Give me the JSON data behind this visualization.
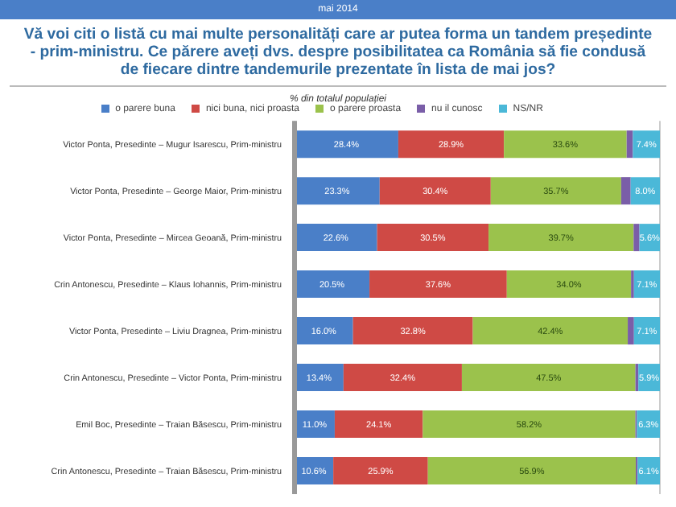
{
  "chart_data": {
    "type": "bar",
    "orientation": "horizontal",
    "stacked": true,
    "title": "Vă voi citi o listă cu mai multe personalități care ar putea forma un tandem președinte - prim-ministru. Ce părere aveți dvs. despre posibilitatea ca România să fie condusă de fiecare dintre tandemurile prezentate în lista de mai jos?",
    "subtitle": "% din totalul populației",
    "annotations": [
      "mai 2014"
    ],
    "categories": [
      "Victor Ponta, Presedinte – Mugur Isarescu, Prim-ministru",
      "Victor Ponta, Presedinte – George Maior, Prim-ministru",
      "Victor Ponta, Presedinte – Mircea Geoană, Prim-ministru",
      "Crin Antonescu, Presedinte – Klaus Iohannis, Prim-ministru",
      "Victor Ponta, Presedinte – Liviu Dragnea, Prim-ministru",
      "Crin Antonescu, Presedinte – Victor Ponta, Prim-ministru",
      "Emil Boc, Presedinte – Traian Băsescu, Prim-ministru",
      "Crin Antonescu, Presedinte – Traian Băsescu, Prim-ministru"
    ],
    "series": [
      {
        "name": "o parere buna",
        "color": "#4a7fc8",
        "values": [
          28.4,
          23.3,
          22.6,
          20.5,
          16.0,
          13.4,
          11.0,
          10.6
        ],
        "value_labels": [
          "28.4%",
          "23.3%",
          "22.6%",
          "20.5%",
          "16.0%",
          "13.4%",
          "11.0%",
          "10.6%"
        ]
      },
      {
        "name": "nici buna, nici proasta",
        "color": "#cf4a45",
        "values": [
          28.9,
          30.4,
          30.5,
          37.6,
          32.8,
          32.4,
          24.1,
          25.9
        ],
        "value_labels": [
          "28.9%",
          "30.4%",
          "30.5%",
          "37.6%",
          "32.8%",
          "32.4%",
          "24.1%",
          "25.9%"
        ]
      },
      {
        "name": "o parere proasta",
        "color": "#9bc24c",
        "values": [
          33.6,
          35.7,
          39.7,
          34.0,
          42.4,
          47.5,
          58.2,
          56.9
        ],
        "value_labels": [
          "33.6%",
          "35.7%",
          "39.7%",
          "34.0%",
          "42.4%",
          "47.5%",
          "58.2%",
          "56.9%"
        ]
      },
      {
        "name": "nu il cunosc",
        "color": "#7a5ea8",
        "values": [
          1.7,
          2.6,
          1.6,
          0.8,
          1.7,
          0.8,
          0.4,
          0.5
        ]
      },
      {
        "name": "NS/NR",
        "color": "#4bb8d8",
        "values": [
          7.4,
          8.0,
          5.6,
          7.1,
          7.1,
          5.9,
          6.3,
          6.1
        ],
        "value_labels": [
          "7.4%",
          "8.0%",
          "5.6%",
          "7.1%",
          "7.1%",
          "5.9%",
          "6.3%",
          "6.1%"
        ]
      }
    ],
    "grid": "x",
    "legend": "top",
    "tick_labels": "y"
  }
}
